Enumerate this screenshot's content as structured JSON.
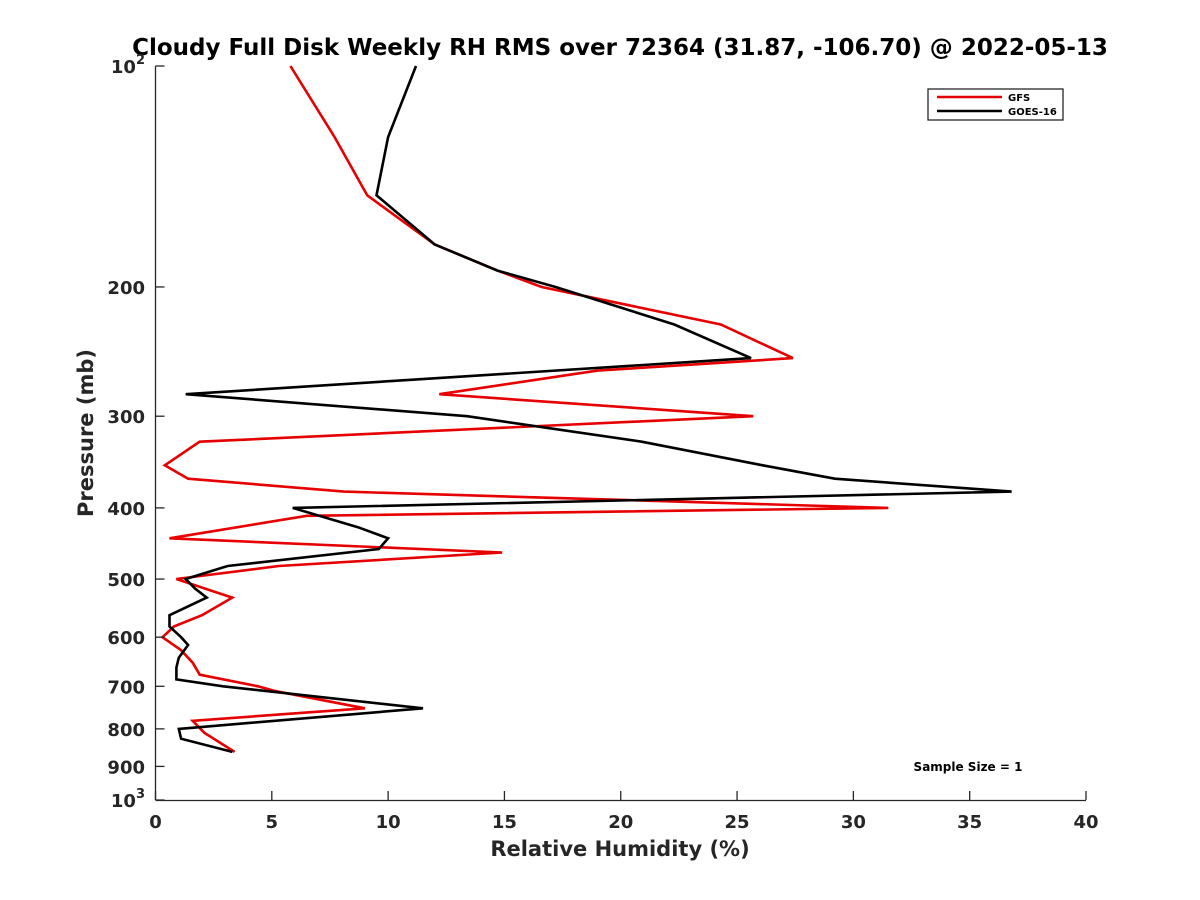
{
  "chart_data": {
    "type": "line",
    "title": "Cloudy Full Disk Weekly RH RMS over 72364 (31.87, -106.70) @ 2022-05-13",
    "xlabel": "Relative Humidity (%)",
    "ylabel": "Pressure (mb)",
    "xlim": [
      0,
      40
    ],
    "ylim": [
      100,
      1000
    ],
    "y_scale": "log",
    "y_reversed": true,
    "x_ticks": [
      0,
      5,
      10,
      15,
      20,
      25,
      30,
      35,
      40
    ],
    "x_tick_labels": [
      "0",
      "5",
      "10",
      "15",
      "20",
      "25",
      "30",
      "35",
      "40"
    ],
    "y_ticks": [
      100,
      200,
      300,
      400,
      500,
      600,
      700,
      800,
      900,
      1000
    ],
    "y_tick_labels": [
      {
        "base": "10",
        "exp": "2"
      },
      {
        "base": "200",
        "exp": ""
      },
      {
        "base": "300",
        "exp": ""
      },
      {
        "base": "400",
        "exp": ""
      },
      {
        "base": "500",
        "exp": ""
      },
      {
        "base": "600",
        "exp": ""
      },
      {
        "base": "700",
        "exp": ""
      },
      {
        "base": "800",
        "exp": ""
      },
      {
        "base": "900",
        "exp": ""
      },
      {
        "base": "10",
        "exp": "3"
      }
    ],
    "grid": false,
    "legend_position": "top-right",
    "annotation": "Sample Size = 1",
    "series": [
      {
        "name": "GFS",
        "color": "#e60000",
        "points": [
          [
            5.8,
            100
          ],
          [
            7.7,
            125
          ],
          [
            9.1,
            150
          ],
          [
            12.0,
            175
          ],
          [
            14.7,
            190
          ],
          [
            16.6,
            200
          ],
          [
            24.3,
            225
          ],
          [
            27.4,
            250
          ],
          [
            19.0,
            260
          ],
          [
            12.2,
            280
          ],
          [
            25.7,
            300
          ],
          [
            1.9,
            325
          ],
          [
            0.4,
            350
          ],
          [
            1.4,
            365
          ],
          [
            8.1,
            380
          ],
          [
            31.5,
            400
          ],
          [
            6.5,
            410
          ],
          [
            0.6,
            440
          ],
          [
            14.9,
            460
          ],
          [
            5.3,
            480
          ],
          [
            0.9,
            500
          ],
          [
            2.5,
            520
          ],
          [
            3.3,
            530
          ],
          [
            2.0,
            560
          ],
          [
            0.8,
            580
          ],
          [
            0.3,
            600
          ],
          [
            1.1,
            625
          ],
          [
            1.6,
            650
          ],
          [
            1.9,
            675
          ],
          [
            4.4,
            700
          ],
          [
            5.1,
            710
          ],
          [
            9.0,
            750
          ],
          [
            1.6,
            780
          ],
          [
            2.1,
            810
          ],
          [
            3.4,
            860
          ]
        ]
      },
      {
        "name": "GOES-16",
        "color": "#000000",
        "points": [
          [
            11.2,
            100
          ],
          [
            10.0,
            125
          ],
          [
            9.5,
            150
          ],
          [
            12.0,
            175
          ],
          [
            14.7,
            190
          ],
          [
            17.2,
            200
          ],
          [
            22.3,
            225
          ],
          [
            25.6,
            250
          ],
          [
            1.3,
            280
          ],
          [
            13.4,
            300
          ],
          [
            20.9,
            325
          ],
          [
            26.1,
            350
          ],
          [
            29.2,
            365
          ],
          [
            36.8,
            380
          ],
          [
            5.9,
            400
          ],
          [
            8.7,
            425
          ],
          [
            10.0,
            440
          ],
          [
            9.6,
            455
          ],
          [
            3.1,
            480
          ],
          [
            1.3,
            500
          ],
          [
            1.7,
            515
          ],
          [
            2.2,
            530
          ],
          [
            0.6,
            560
          ],
          [
            0.6,
            580
          ],
          [
            1.1,
            600
          ],
          [
            1.4,
            615
          ],
          [
            1.0,
            640
          ],
          [
            0.9,
            660
          ],
          [
            0.9,
            685
          ],
          [
            2.9,
            700
          ],
          [
            11.5,
            750
          ],
          [
            1.0,
            800
          ],
          [
            1.1,
            825
          ],
          [
            3.3,
            860
          ]
        ]
      }
    ]
  }
}
